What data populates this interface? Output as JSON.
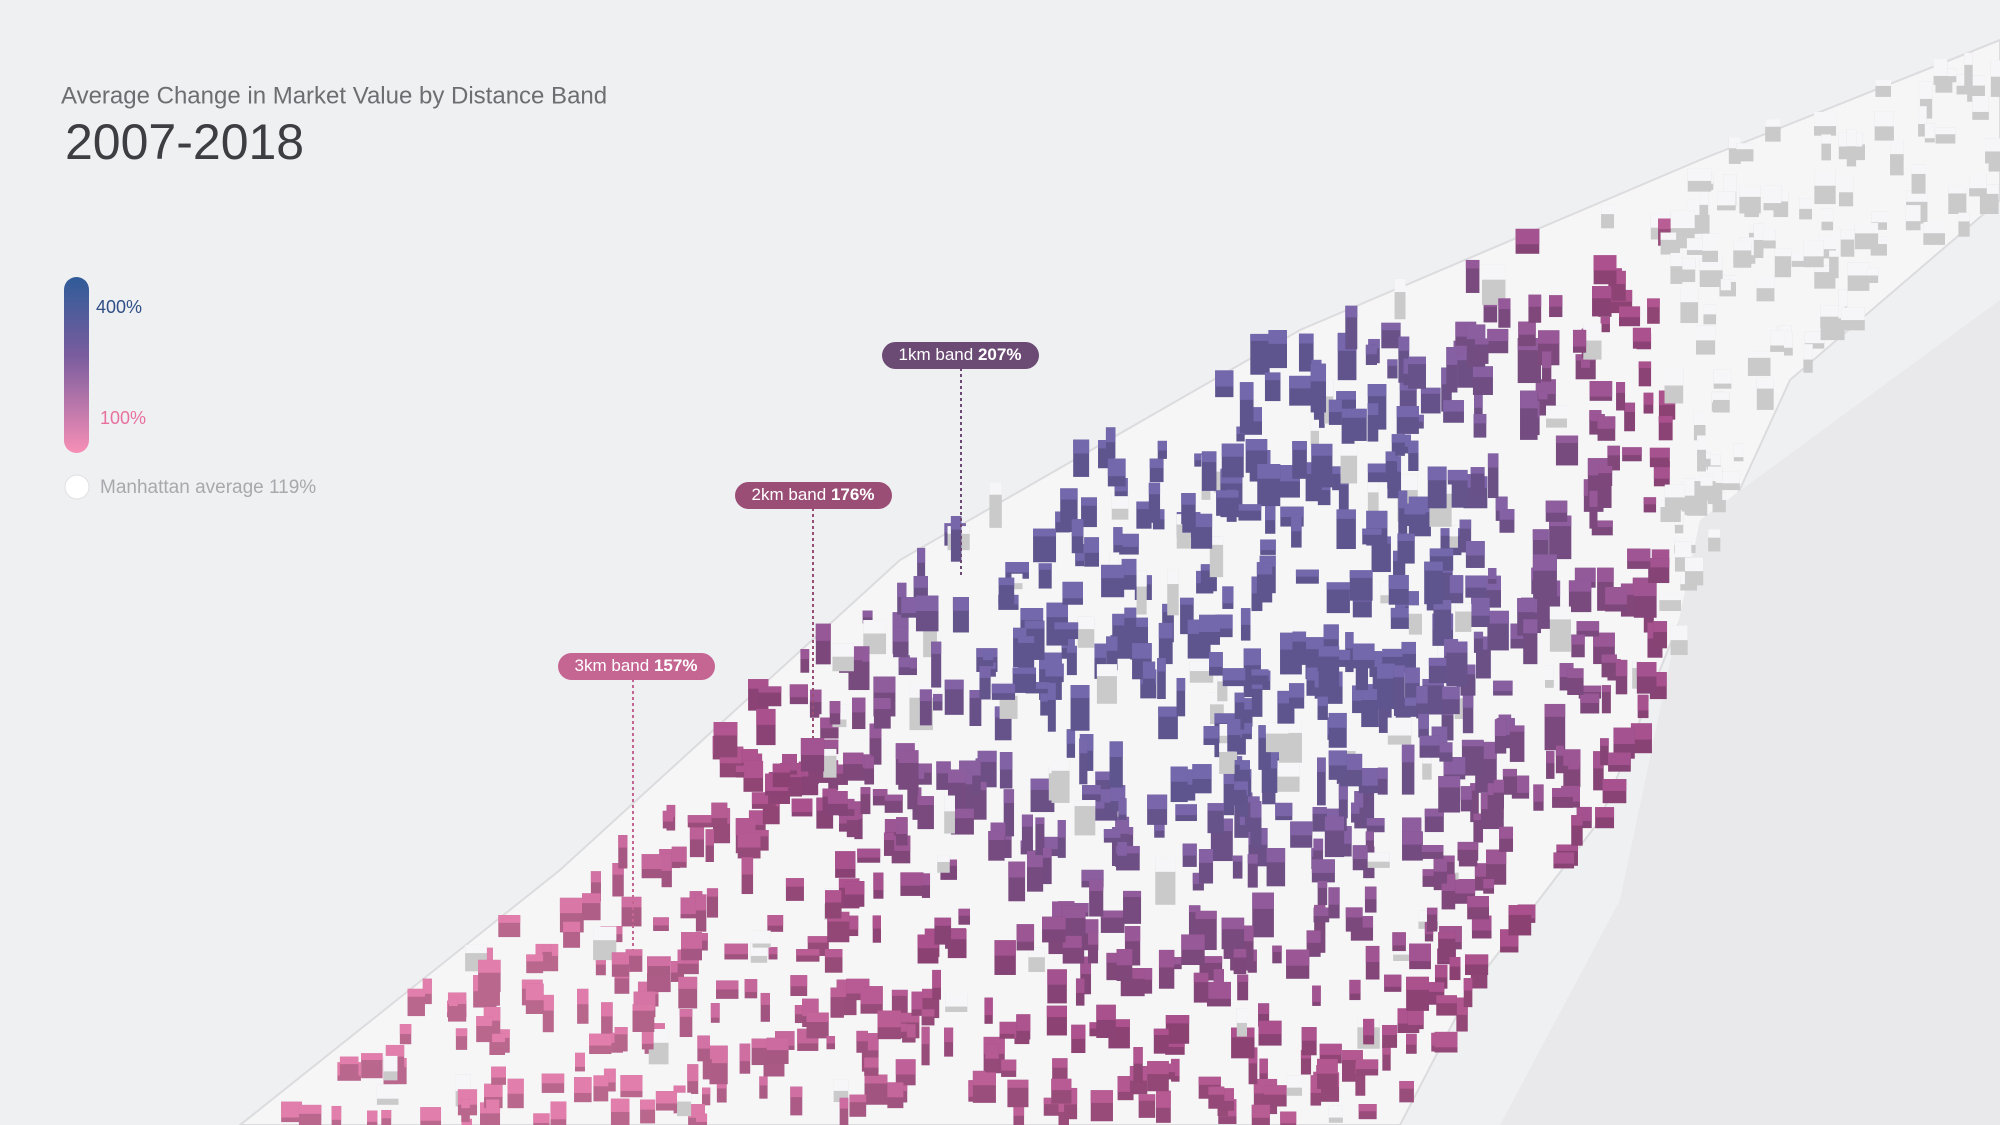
{
  "header": {
    "subtitle": "Average Change in Market Value by Distance Band",
    "title": "2007-2018"
  },
  "legend": {
    "high": "400%",
    "low": "100%",
    "average": "Manhattan average 119%"
  },
  "callouts": [
    {
      "band": "1km band",
      "value": "207%"
    },
    {
      "band": "2km band",
      "value": "176%"
    },
    {
      "band": "3km band",
      "value": "157%"
    }
  ]
}
